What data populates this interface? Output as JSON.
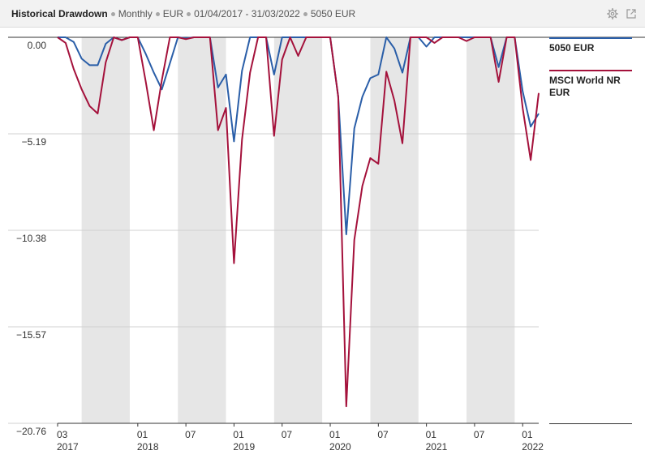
{
  "header": {
    "title": "Historical Drawdown",
    "frequency": "Monthly",
    "currency": "EUR",
    "period": "01/04/2017 - 31/03/2022",
    "benchmark_name": "5050 EUR",
    "icons": [
      "gear-icon",
      "expand-icon"
    ]
  },
  "colors": {
    "series_1": "#2a5ea8",
    "series_2": "#a4113b",
    "band": "#e6e6e6",
    "grid": "#d0d0d0",
    "baseline": "#333333"
  },
  "chart_data": {
    "type": "line",
    "title": "Historical Drawdown",
    "ylim": [
      -20.76,
      0.5
    ],
    "yticks": [
      0.0,
      -5.19,
      -10.38,
      -15.57,
      -20.76
    ],
    "ytick_labels": [
      "0.00",
      "−5.19",
      "−10.38",
      "−15.57",
      "−20.76"
    ],
    "xticks": [
      {
        "label": "03",
        "year": "2017"
      },
      {
        "label": "01",
        "year": "2018"
      },
      {
        "label": "07",
        "year": ""
      },
      {
        "label": "01",
        "year": "2019"
      },
      {
        "label": "07",
        "year": ""
      },
      {
        "label": "01",
        "year": "2020"
      },
      {
        "label": "07",
        "year": ""
      },
      {
        "label": "01",
        "year": "2021"
      },
      {
        "label": "07",
        "year": ""
      },
      {
        "label": "01",
        "year": "2022"
      }
    ],
    "x": [
      "2017-03",
      "2017-04",
      "2017-05",
      "2017-06",
      "2017-07",
      "2017-08",
      "2017-09",
      "2017-10",
      "2017-11",
      "2017-12",
      "2018-01",
      "2018-02",
      "2018-03",
      "2018-04",
      "2018-05",
      "2018-06",
      "2018-07",
      "2018-08",
      "2018-09",
      "2018-10",
      "2018-11",
      "2018-12",
      "2019-01",
      "2019-02",
      "2019-03",
      "2019-04",
      "2019-05",
      "2019-06",
      "2019-07",
      "2019-08",
      "2019-09",
      "2019-10",
      "2019-11",
      "2019-12",
      "2020-01",
      "2020-02",
      "2020-03",
      "2020-04",
      "2020-05",
      "2020-06",
      "2020-07",
      "2020-08",
      "2020-09",
      "2020-10",
      "2020-11",
      "2020-12",
      "2021-01",
      "2021-02",
      "2021-03",
      "2021-04",
      "2021-05",
      "2021-06",
      "2021-07",
      "2021-08",
      "2021-09",
      "2021-10",
      "2021-11",
      "2021-12",
      "2022-01",
      "2022-02",
      "2022-03"
    ],
    "shaded_bands": [
      [
        "2017-06",
        "2017-12"
      ],
      [
        "2018-06",
        "2018-12"
      ],
      [
        "2019-06",
        "2019-12"
      ],
      [
        "2020-06",
        "2020-12"
      ],
      [
        "2021-06",
        "2021-12"
      ]
    ],
    "series": [
      {
        "name": "5050 EUR",
        "color": "#2a5ea8",
        "values": [
          0.0,
          0.0,
          -0.25,
          -1.15,
          -1.5,
          -1.5,
          -0.35,
          0.0,
          -0.15,
          0.0,
          0.0,
          -0.9,
          -1.9,
          -2.8,
          -1.4,
          0.0,
          -0.05,
          0.0,
          0.0,
          0.0,
          -2.7,
          -2.0,
          -5.6,
          -1.8,
          0.0,
          0.0,
          0.0,
          -2.0,
          0.0,
          0.0,
          0.0,
          0.0,
          0.0,
          0.0,
          0.0,
          -3.2,
          -10.6,
          -4.9,
          -3.2,
          -2.2,
          -2.0,
          0.0,
          -0.6,
          -1.9,
          0.0,
          0.0,
          -0.5,
          0.0,
          0.0,
          0.0,
          0.0,
          0.0,
          0.0,
          0.0,
          0.0,
          -1.6,
          0.0,
          0.0,
          -2.9,
          -4.8,
          -4.1
        ]
      },
      {
        "name": "MSCI World NR EUR",
        "color": "#a4113b",
        "values": [
          0.0,
          -0.3,
          -1.7,
          -2.8,
          -3.7,
          -4.1,
          -1.35,
          0.0,
          -0.15,
          0.0,
          0.0,
          -2.4,
          -5.0,
          -2.3,
          0.0,
          0.0,
          -0.1,
          0.0,
          0.0,
          0.0,
          -5.0,
          -3.8,
          -12.15,
          -5.5,
          -1.9,
          0.0,
          0.0,
          -5.3,
          -1.2,
          0.0,
          -1.0,
          0.0,
          0.0,
          0.0,
          0.0,
          -3.2,
          -19.85,
          -10.9,
          -8.0,
          -6.5,
          -6.8,
          -1.85,
          -3.4,
          -5.7,
          0.0,
          0.0,
          0.0,
          -0.3,
          0.0,
          0.0,
          0.0,
          -0.2,
          0.0,
          0.0,
          0.0,
          -2.4,
          0.0,
          0.0,
          -3.8,
          -6.6,
          -3.0
        ]
      }
    ],
    "legend_position": "right",
    "grid": true
  }
}
